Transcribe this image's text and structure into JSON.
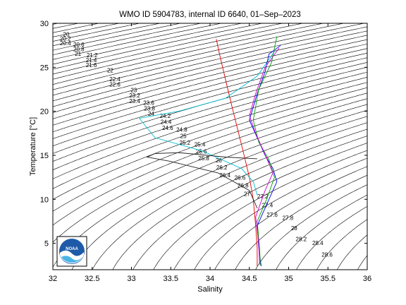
{
  "chart_data": {
    "type": "line",
    "title": "WMO ID 5904783, internal ID 6640, 01–Sep–2023",
    "xlabel": "Salinity",
    "ylabel": "Temperature [°C]",
    "xlim": [
      32,
      36
    ],
    "ylim": [
      2,
      30
    ],
    "xticks": [
      "32",
      "32.5",
      "33",
      "33.5",
      "34",
      "34.5",
      "35",
      "35.5",
      "36"
    ],
    "yticks": [
      "5",
      "10",
      "15",
      "20",
      "25",
      "30"
    ],
    "grid": false,
    "density_contours": {
      "labels": [
        "20",
        "20.2",
        "20.4",
        "20.6",
        "20.8",
        "21",
        "21.2",
        "21.4",
        "21.6",
        "22",
        "22.4",
        "22.6",
        "23",
        "23.2",
        "23.4",
        "23.6",
        "23.8",
        "24",
        "24.2",
        "24.4",
        "24.6",
        "24.8",
        "25",
        "25.2",
        "25.4",
        "25.6",
        "25.8",
        "26",
        "26.2",
        "26.4",
        "26.6",
        "26.8",
        "27",
        "27.2",
        "27.4",
        "27.6",
        "27.8",
        "28",
        "28.2",
        "28.4",
        "28.6"
      ],
      "levels_min": 19.0,
      "levels_max": 29.6,
      "levels_step": 0.2
    },
    "series": [
      {
        "color": "#e60000",
        "x": [
          34.08,
          34.12,
          34.2,
          34.28,
          34.35,
          34.42,
          34.5,
          34.55,
          34.58,
          34.6,
          34.6
        ],
        "y": [
          28.2,
          26.5,
          23.5,
          20.5,
          18.0,
          15.5,
          12.5,
          10.0,
          7.0,
          4.5,
          2.4
        ]
      },
      {
        "color": "#00c0d0",
        "x": [
          34.82,
          34.6,
          34.2,
          33.6,
          33.1,
          33.3,
          33.9,
          34.4,
          34.55,
          34.6
        ],
        "y": [
          26.8,
          24.0,
          21.5,
          20.0,
          19.2,
          17.0,
          15.5,
          13.5,
          12.0,
          10.5
        ]
      },
      {
        "color": "#222222",
        "x": [
          34.6,
          34.2,
          33.6,
          33.3,
          33.2,
          33.5,
          34.1,
          34.5,
          34.6
        ],
        "y": [
          14.6,
          14.8,
          15.3,
          15.2,
          14.8,
          14.3,
          13.0,
          11.0,
          9.0
        ]
      },
      {
        "color": "#0000ee",
        "x": [
          34.9,
          34.75,
          34.7,
          34.6,
          34.5,
          34.6,
          34.7,
          34.8,
          34.85,
          34.75,
          34.6,
          34.62,
          34.65
        ],
        "y": [
          27.5,
          26.5,
          24.5,
          22.0,
          19.0,
          17.0,
          15.0,
          13.5,
          12.0,
          10.0,
          7.0,
          4.5,
          2.4
        ]
      },
      {
        "color": "#00a000",
        "x": [
          34.85,
          34.78,
          34.62,
          34.55,
          34.62,
          34.75,
          34.82,
          34.72,
          34.6,
          34.63,
          34.64
        ],
        "y": [
          28.5,
          25.5,
          22.5,
          19.0,
          16.5,
          14.5,
          12.5,
          10.0,
          7.5,
          4.5,
          2.5
        ]
      },
      {
        "color": "#cc00cc",
        "x": [
          34.88,
          34.7,
          34.58,
          34.5,
          34.58,
          34.68,
          34.8,
          34.7,
          34.58,
          34.62,
          34.63
        ],
        "y": [
          27.2,
          25.0,
          22.0,
          19.5,
          17.5,
          15.5,
          13.0,
          11.0,
          8.0,
          5.0,
          2.6
        ]
      }
    ]
  },
  "logo": {
    "text": "NOAA"
  }
}
